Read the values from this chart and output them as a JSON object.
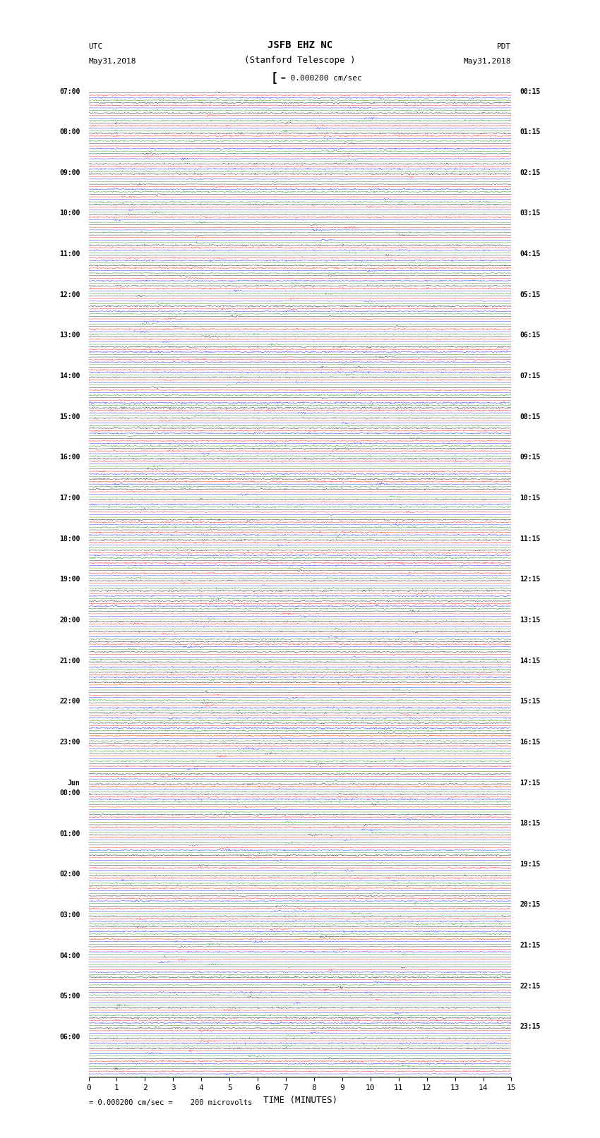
{
  "title_line1": "JSFB EHZ NC",
  "title_line2": "(Stanford Telescope )",
  "scale_label": "= 0.000200 cm/sec",
  "bottom_label": "= 0.000200 cm/sec =    200 microvolts",
  "xlabel": "TIME (MINUTES)",
  "left_label_top": "UTC",
  "left_label_date": "May31,2018",
  "right_label_top": "PDT",
  "right_label_date": "May31,2018",
  "left_times_utc": [
    "07:00",
    "",
    "",
    "",
    "08:00",
    "",
    "",
    "",
    "09:00",
    "",
    "",
    "",
    "10:00",
    "",
    "",
    "",
    "11:00",
    "",
    "",
    "",
    "12:00",
    "",
    "",
    "",
    "13:00",
    "",
    "",
    "",
    "14:00",
    "",
    "",
    "",
    "15:00",
    "",
    "",
    "",
    "16:00",
    "",
    "",
    "",
    "17:00",
    "",
    "",
    "",
    "18:00",
    "",
    "",
    "",
    "19:00",
    "",
    "",
    "",
    "20:00",
    "",
    "",
    "",
    "21:00",
    "",
    "",
    "",
    "22:00",
    "",
    "",
    "",
    "23:00",
    "",
    "",
    "",
    "Jun",
    "00:00",
    "",
    "",
    "",
    "01:00",
    "",
    "",
    "",
    "02:00",
    "",
    "",
    "",
    "03:00",
    "",
    "",
    "",
    "04:00",
    "",
    "",
    "",
    "05:00",
    "",
    "",
    "",
    "06:00",
    "",
    "",
    ""
  ],
  "right_times_pdt": [
    "00:15",
    "",
    "",
    "",
    "01:15",
    "",
    "",
    "",
    "02:15",
    "",
    "",
    "",
    "03:15",
    "",
    "",
    "",
    "04:15",
    "",
    "",
    "",
    "05:15",
    "",
    "",
    "",
    "06:15",
    "",
    "",
    "",
    "07:15",
    "",
    "",
    "",
    "08:15",
    "",
    "",
    "",
    "09:15",
    "",
    "",
    "",
    "10:15",
    "",
    "",
    "",
    "11:15",
    "",
    "",
    "",
    "12:15",
    "",
    "",
    "",
    "13:15",
    "",
    "",
    "",
    "14:15",
    "",
    "",
    "",
    "15:15",
    "",
    "",
    "",
    "16:15",
    "",
    "",
    "",
    "17:15",
    "",
    "",
    "",
    "18:15",
    "",
    "",
    "",
    "19:15",
    "",
    "",
    "",
    "20:15",
    "",
    "",
    "",
    "21:15",
    "",
    "",
    "",
    "22:15",
    "",
    "",
    "",
    "23:15",
    "",
    "",
    ""
  ],
  "colors": [
    "black",
    "red",
    "blue",
    "green"
  ],
  "bg_color": "white",
  "xmin": 0,
  "xmax": 15,
  "figwidth": 8.5,
  "figheight": 16.13,
  "dpi": 100
}
